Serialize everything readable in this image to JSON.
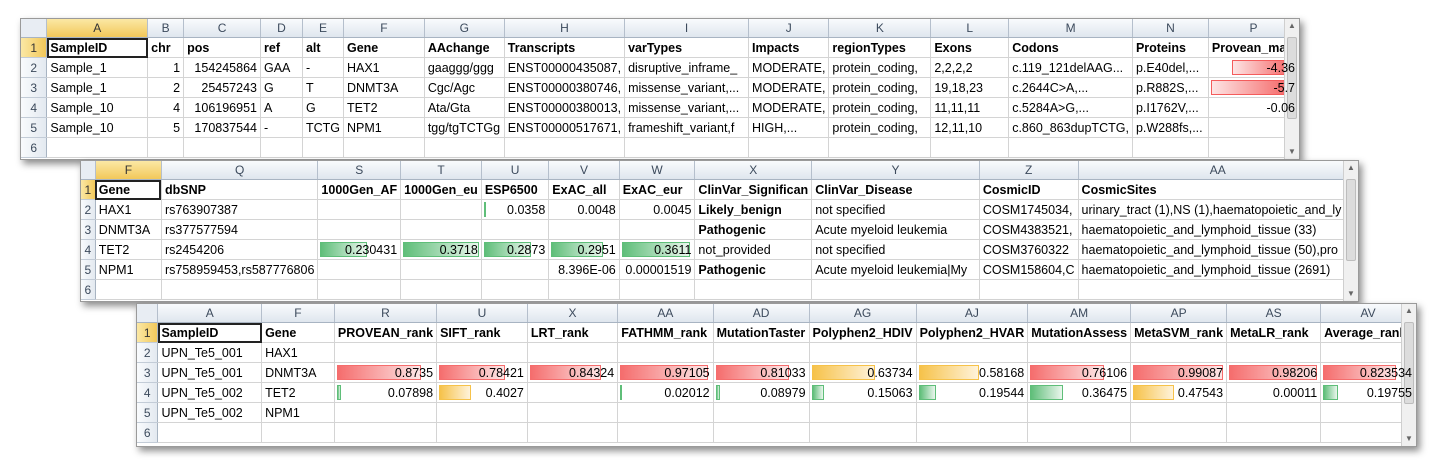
{
  "sheet1": {
    "col_letters": [
      "A",
      "B",
      "C",
      "D",
      "E",
      "F",
      "G",
      "H",
      "I",
      "J",
      "K",
      "L",
      "M",
      "N",
      "P"
    ],
    "row_numbers": [
      "1",
      "2",
      "3",
      "4",
      "5",
      "6"
    ],
    "header": [
      "SampleID",
      "chr",
      "pos",
      "ref",
      "alt",
      "Gene",
      "AAchange",
      "Transcripts",
      "varTypes",
      "Impacts",
      "regionTypes",
      "Exons",
      "Codons",
      "Proteins",
      "Provean_max"
    ],
    "rows": [
      [
        "Sample_1",
        "1",
        "154245864",
        "GAA",
        "-",
        "HAX1",
        "gaaggg/ggg",
        "ENST00000435087,",
        "disruptive_inframe_",
        "MODERATE,",
        "protein_coding,",
        "2,2,2,2",
        "c.119_121delAAG...",
        "p.E40del,...",
        "-4.36"
      ],
      [
        "Sample_1",
        "2",
        "25457243",
        "G",
        "T",
        "DNMT3A",
        "Cgc/Agc",
        "ENST00000380746,",
        "missense_variant,...",
        "MODERATE,",
        "protein_coding,",
        "19,18,23",
        "c.2644C>A,...",
        "p.R882S,...",
        "-5.7"
      ],
      [
        "Sample_10",
        "4",
        "106196951",
        "A",
        "G",
        "TET2",
        "Ata/Gta",
        "ENST00000380013,",
        "missense_variant,...",
        "MODERATE,",
        "protein_coding,",
        "11,11,11",
        "c.5284A>G,...",
        "p.I1762V,...",
        "-0.06"
      ],
      [
        "Sample_10",
        "5",
        "170837544",
        "-",
        "TCTG",
        "NPM1",
        "tgg/tgTCTGg",
        "ENST00000517671,",
        "frameshift_variant,f",
        "HIGH,...",
        "protein_coding,",
        "12,11,10",
        "c.860_863dupTCTG,",
        "p.W288fs,...",
        ""
      ]
    ],
    "provean_bar_fraction": [
      0.76,
      1.0,
      0.01,
      0
    ]
  },
  "sheet2": {
    "col_letters": [
      "F",
      "Q",
      "S",
      "T",
      "U",
      "V",
      "W",
      "X",
      "Y",
      "Z",
      "AA"
    ],
    "row_numbers": [
      "1",
      "2",
      "3",
      "4",
      "5",
      "6"
    ],
    "header": [
      "Gene",
      "dbSNP",
      "1000Gen_AF",
      "1000Gen_eu",
      "ESP6500",
      "ExAC_all",
      "ExAC_eur",
      "ClinVar_Significan",
      "ClinVar_Disease",
      "CosmicID",
      "CosmicSites"
    ],
    "rows": [
      [
        "HAX1",
        "rs763907387",
        "",
        "",
        "0.0358",
        "0.0048",
        "0.0045",
        "Likely_benign",
        "not specified",
        "COSM1745034,",
        "urinary_tract (1),NS (1),haematopoietic_and_ly"
      ],
      [
        "DNMT3A",
        "rs377577594",
        "",
        "",
        "",
        "",
        "",
        "Pathogenic",
        "Acute myeloid leukemia",
        "COSM4383521,",
        "haematopoietic_and_lymphoid_tissue (33)"
      ],
      [
        "TET2",
        "rs2454206",
        "0.230431",
        "0.3718",
        "0.2873",
        "0.2951",
        "0.3611",
        "not_provided",
        "not specified",
        "COSM3760322",
        "haematopoietic_and_lymphoid_tissue (50),pro"
      ],
      [
        "NPM1",
        "rs758959453,rs587776806",
        "",
        "",
        "",
        "8.396E-06",
        "0.00001519",
        "Pathogenic",
        "Acute myeloid leukemia|My",
        "COSM158604,C",
        "haematopoietic_and_lymphoid_tissue (2691)"
      ]
    ],
    "bar_fractions": [
      [
        0,
        0,
        0.1,
        0,
        0
      ],
      [
        0,
        0,
        0,
        0,
        0
      ],
      [
        0.62,
        1.0,
        0.77,
        0.8,
        0.97
      ],
      [
        0,
        0,
        0,
        0,
        0
      ]
    ]
  },
  "sheet3": {
    "col_letters": [
      "A",
      "F",
      "R",
      "U",
      "X",
      "AA",
      "AD",
      "AG",
      "AJ",
      "AM",
      "AP",
      "AS",
      "AV"
    ],
    "row_numbers": [
      "1",
      "2",
      "3",
      "4",
      "5",
      "6"
    ],
    "header": [
      "SampleID",
      "Gene",
      "PROVEAN_rank",
      "SIFT_rank",
      "LRT_rank",
      "FATHMM_rank",
      "MutationTaster",
      "Polyphen2_HDIV",
      "Polyphen2_HVAR",
      "MutationAssess",
      "MetaSVM_rank",
      "MetaLR_rank",
      "Average_rank"
    ],
    "rows": [
      [
        "UPN_Te5_001",
        "HAX1",
        "",
        "",
        "",
        "",
        "",
        "",
        "",
        "",
        "",
        "",
        ""
      ],
      [
        "UPN_Te5_001",
        "DNMT3A",
        "0.8735",
        "0.78421",
        "0.84324",
        "0.97105",
        "0.81033",
        "0.63734",
        "0.58168",
        "0.76106",
        "0.99087",
        "0.98206",
        "0.823534"
      ],
      [
        "UPN_Te5_002",
        "TET2",
        "0.07898",
        "0.4027",
        "",
        "0.02012",
        "0.08979",
        "0.15063",
        "0.19544",
        "0.36475",
        "0.47543",
        "0.00011",
        "0.19755"
      ],
      [
        "UPN_Te5_002",
        "NPM1",
        "",
        "",
        "",
        "",
        "",
        "",
        "",
        "",
        "",
        "",
        ""
      ]
    ],
    "bar_colors": [
      [
        "",
        "",
        "",
        "",
        "",
        "",
        "",
        "",
        "",
        "",
        ""
      ],
      [
        "red",
        "red",
        "red",
        "red",
        "red",
        "orange",
        "orange",
        "red",
        "red",
        "red",
        "red"
      ],
      [
        "green",
        "orange",
        "",
        "green",
        "green",
        "green",
        "green",
        "green",
        "orange",
        "",
        "green"
      ]
    ]
  }
}
